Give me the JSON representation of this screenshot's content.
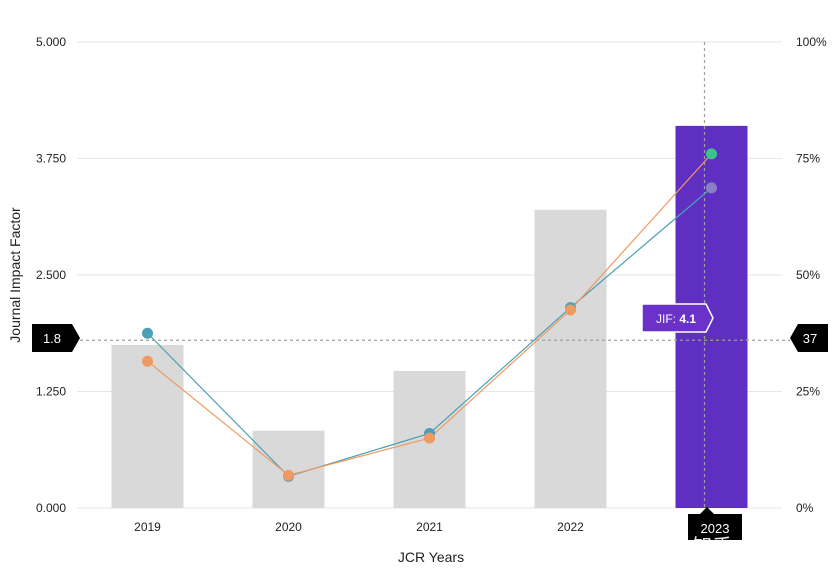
{
  "chart_data": {
    "type": "bar",
    "categories": [
      "2019",
      "2020",
      "2021",
      "2022",
      "2023"
    ],
    "values": [
      1.75,
      0.83,
      1.47,
      3.2,
      4.1
    ],
    "xlabel": "JCR Years",
    "ylabel": "Journal Impact Factor",
    "ylim": [
      0,
      5
    ],
    "y_ticks": [
      "0.000",
      "1.250",
      "2.500",
      "3.750",
      "5.000"
    ],
    "y2lim": [
      0,
      100
    ],
    "y2_ticks": [
      "0%",
      "25%",
      "50%",
      "75%",
      "100%"
    ],
    "bar_colors": {
      "default": "#d9d9d9",
      "highlight": "#5f2fc2"
    },
    "highlight_index": 4,
    "line_series": [
      {
        "color": "#4aa0b4",
        "values": [
          37.5,
          6.8,
          16,
          43,
          68.7
        ]
      },
      {
        "color": "#ef9a63",
        "values": [
          31.5,
          7,
          15,
          42.5,
          76
        ]
      }
    ],
    "last_point_colors": [
      "#8a80c8",
      "#3bc58c"
    ],
    "grid": true,
    "crosshair": {
      "left_label": "1.8",
      "right_label": "37",
      "x_label": "2023",
      "y_value": 1.8
    },
    "tooltip": {
      "label": "JIF: ",
      "value": "4.1",
      "color": "#6a32c8"
    }
  },
  "watermark": "知乎 @李内铭"
}
